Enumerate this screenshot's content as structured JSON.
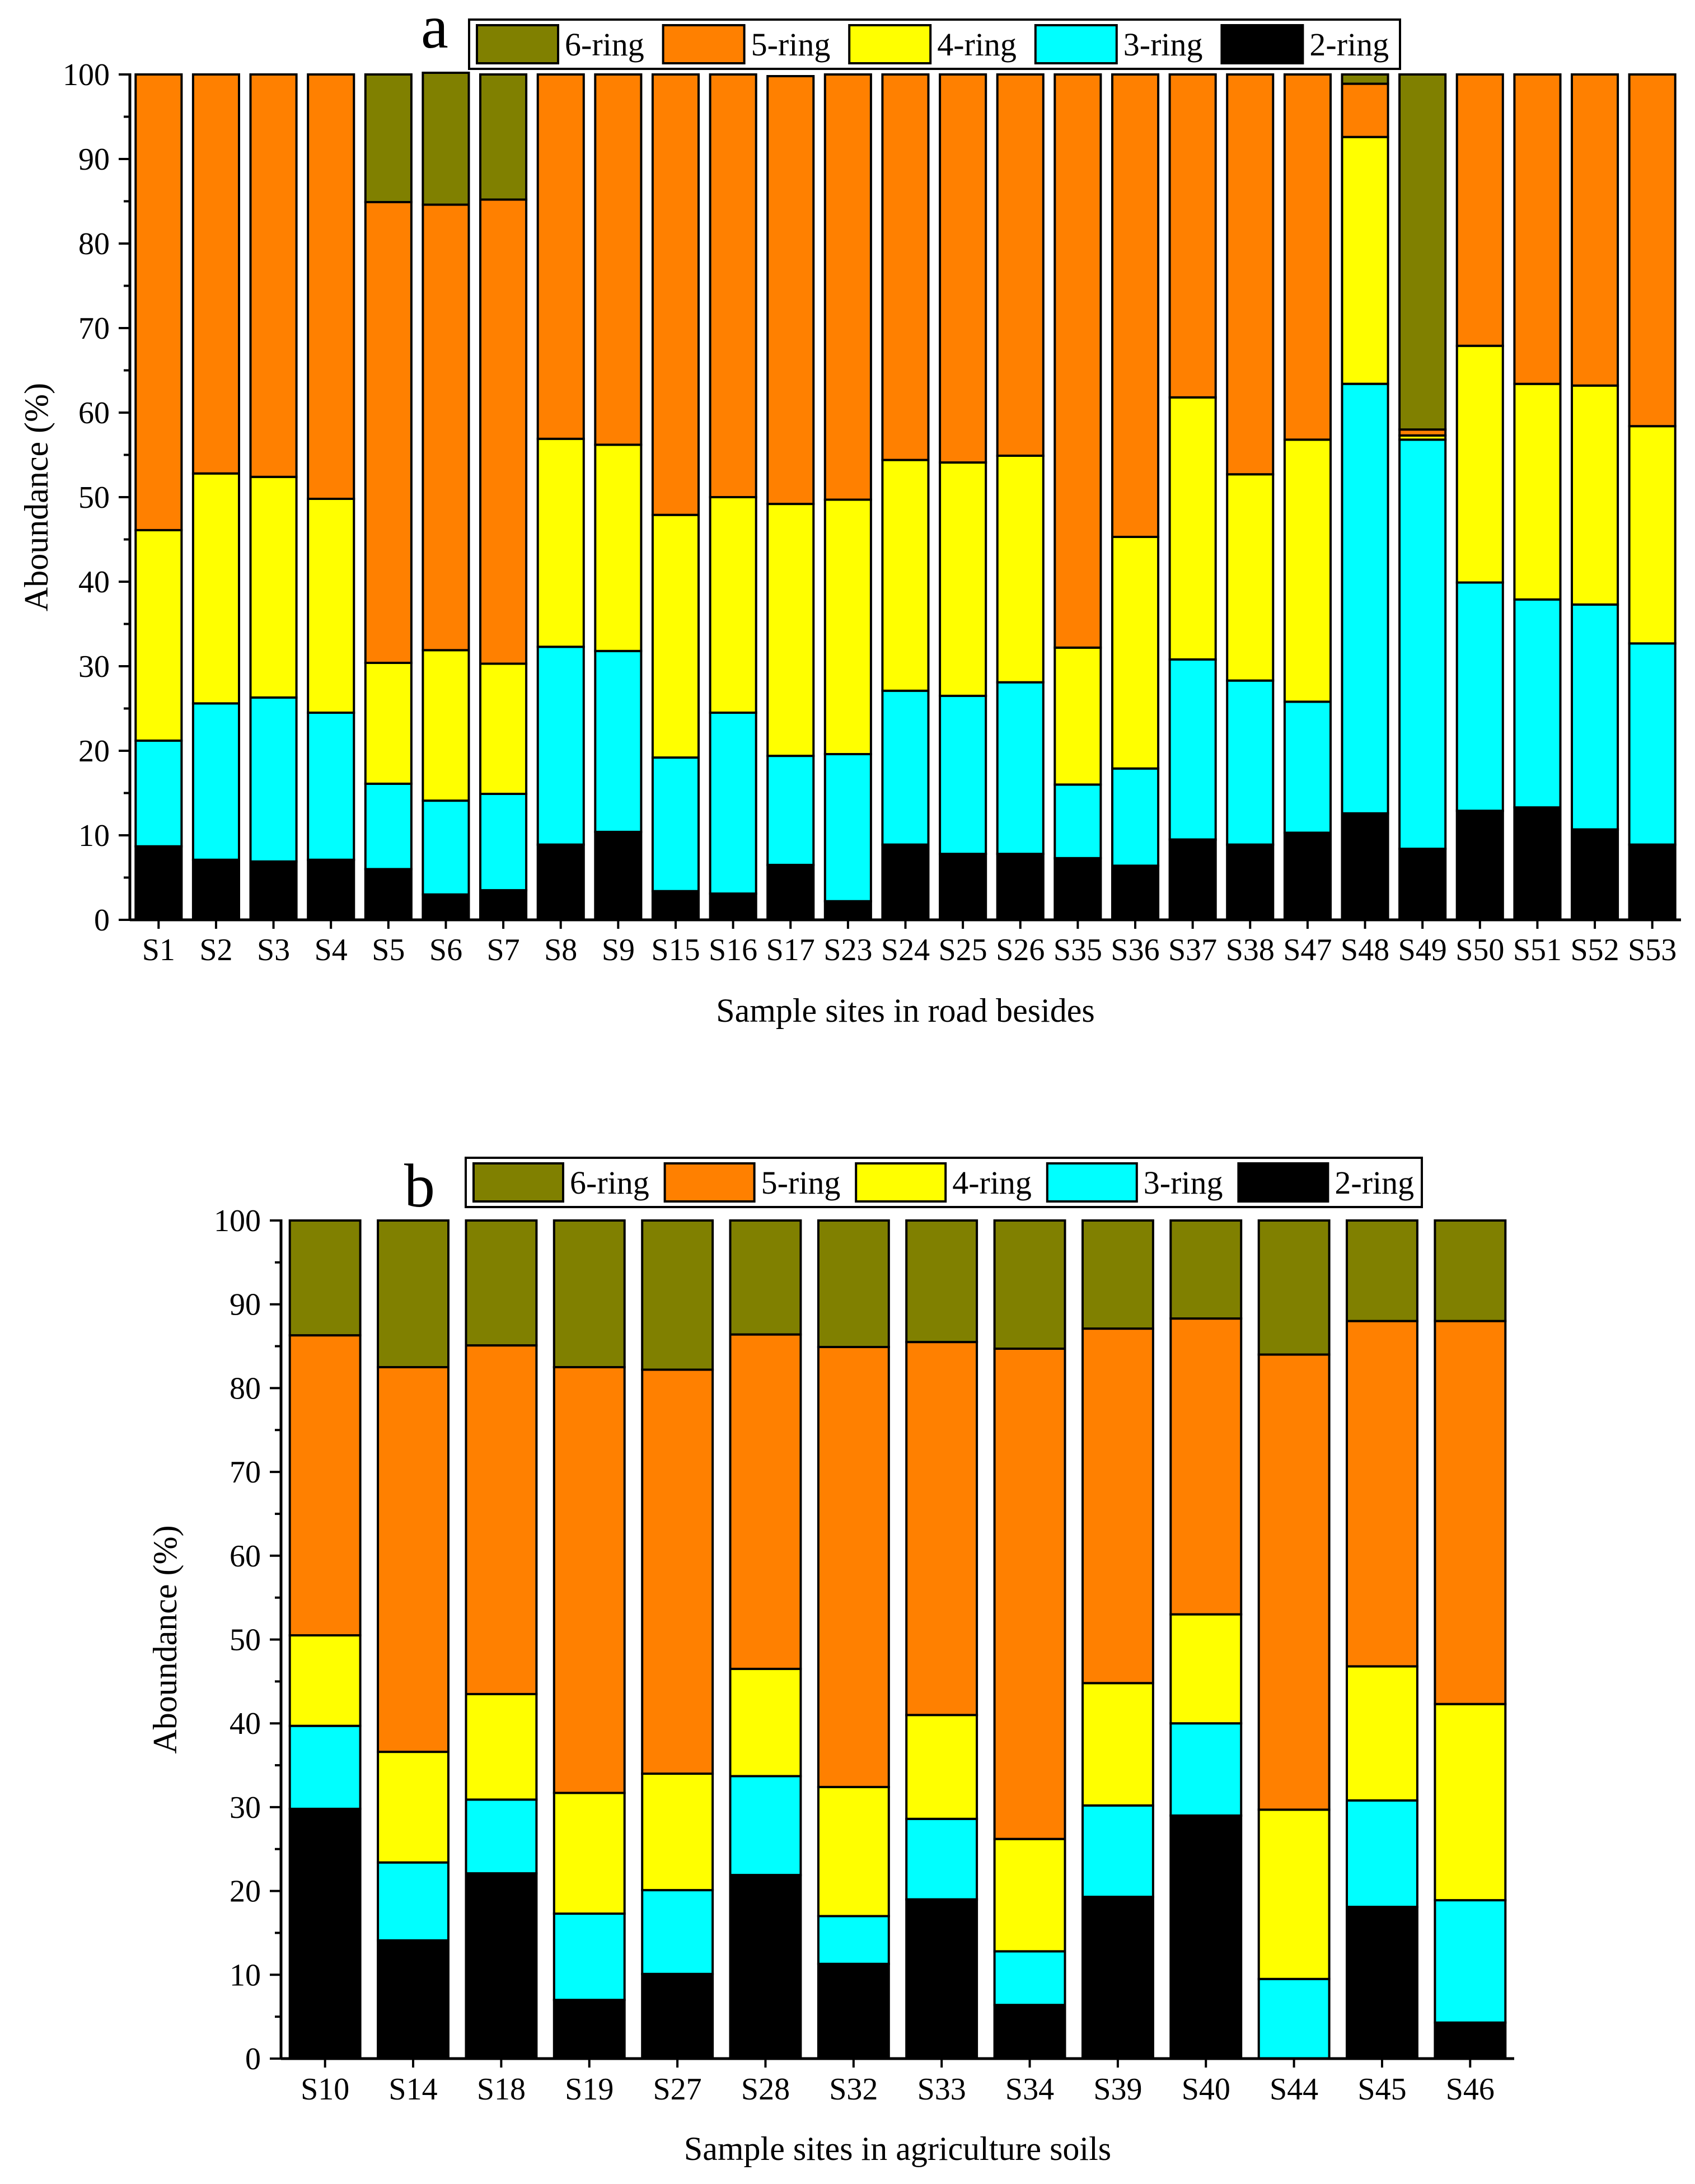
{
  "figure": {
    "colors": {
      "6-ring": "#808000",
      "5-ring": "#ff8000",
      "4-ring": "#ffff00",
      "3-ring": "#00ffff",
      "2-ring": "#000000"
    }
  },
  "chart_data": [
    {
      "type": "bar",
      "stacked": true,
      "panel": "a",
      "xlabel": "Sample sites in road besides",
      "ylabel": "Aboundance (%)",
      "ylim": [
        0,
        100
      ],
      "yticks": [
        0,
        10,
        20,
        30,
        40,
        50,
        60,
        70,
        80,
        90,
        100
      ],
      "legend": [
        "6-ring",
        "5-ring",
        "4-ring",
        "3-ring",
        "2-ring"
      ],
      "legend_position": "top",
      "categories": [
        "S1",
        "S2",
        "S3",
        "S4",
        "S5",
        "S6",
        "S7",
        "S8",
        "S9",
        "S15",
        "S16",
        "S17",
        "S23",
        "S24",
        "S25",
        "S26",
        "S35",
        "S36",
        "S37",
        "S38",
        "S47",
        "S48",
        "S49",
        "S50",
        "S51",
        "S52",
        "S53"
      ],
      "series": [
        {
          "name": "2-ring",
          "values": [
            8.7,
            7.1,
            6.9,
            7.1,
            6.0,
            3.0,
            3.5,
            8.9,
            10.4,
            3.4,
            3.1,
            6.5,
            2.2,
            8.9,
            7.8,
            7.8,
            7.3,
            6.4,
            9.5,
            8.9,
            10.3,
            12.6,
            8.4,
            12.9,
            13.3,
            10.7,
            8.9
          ]
        },
        {
          "name": "3-ring",
          "values": [
            12.5,
            18.5,
            19.4,
            17.4,
            10.1,
            11.1,
            11.4,
            23.4,
            21.4,
            15.8,
            21.4,
            12.9,
            17.4,
            18.2,
            18.7,
            20.3,
            8.7,
            11.5,
            21.3,
            19.4,
            15.5,
            50.8,
            48.4,
            27.0,
            24.6,
            26.6,
            23.8
          ]
        },
        {
          "name": "4-ring",
          "values": [
            24.9,
            27.2,
            26.1,
            25.3,
            14.3,
            17.8,
            15.4,
            24.6,
            24.4,
            28.7,
            25.5,
            29.8,
            30.1,
            27.3,
            27.6,
            26.8,
            16.2,
            27.4,
            31.0,
            24.4,
            31.0,
            29.2,
            0.5,
            28.0,
            25.5,
            25.9,
            25.7
          ]
        },
        {
          "name": "5-ring",
          "values": [
            53.9,
            47.2,
            47.6,
            50.2,
            54.5,
            52.7,
            54.9,
            43.1,
            43.8,
            52.1,
            50.0,
            50.6,
            50.3,
            45.6,
            45.9,
            45.1,
            67.8,
            54.7,
            38.2,
            47.3,
            43.2,
            6.3,
            0.7,
            32.1,
            36.6,
            36.8,
            41.6
          ]
        },
        {
          "name": "6-ring",
          "values": [
            0,
            0,
            0,
            0,
            15.1,
            15.6,
            14.8,
            0,
            0,
            0,
            0,
            0,
            0,
            0,
            0,
            0,
            0,
            0,
            0,
            0,
            0,
            1.1,
            42.0,
            0,
            0,
            0,
            0
          ]
        }
      ]
    },
    {
      "type": "bar",
      "stacked": true,
      "panel": "b",
      "xlabel": "Sample sites in agriculture soils",
      "ylabel": "Aboundance (%)",
      "ylim": [
        0,
        100
      ],
      "yticks": [
        0,
        10,
        20,
        30,
        40,
        50,
        60,
        70,
        80,
        90,
        100
      ],
      "legend": [
        "6-ring",
        "5-ring",
        "4-ring",
        "3-ring",
        "2-ring"
      ],
      "legend_position": "top",
      "categories": [
        "S10",
        "S14",
        "S18",
        "S19",
        "S27",
        "S28",
        "S32",
        "S33",
        "S34",
        "S39",
        "S40",
        "S44",
        "S45",
        "S46"
      ],
      "series": [
        {
          "name": "2-ring",
          "values": [
            29.8,
            14.1,
            22.1,
            7.0,
            10.1,
            21.9,
            11.3,
            19.0,
            6.4,
            19.3,
            29.0,
            0,
            18.1,
            4.3
          ]
        },
        {
          "name": "3-ring",
          "values": [
            9.9,
            9.3,
            8.8,
            10.3,
            10.0,
            11.8,
            5.7,
            9.6,
            6.4,
            10.9,
            11.0,
            9.5,
            12.7,
            14.6
          ]
        },
        {
          "name": "4-ring",
          "values": [
            10.8,
            13.2,
            12.6,
            14.4,
            13.9,
            12.8,
            15.4,
            12.4,
            13.4,
            14.6,
            13.0,
            20.2,
            16.0,
            23.4
          ]
        },
        {
          "name": "5-ring",
          "values": [
            35.8,
            45.9,
            41.6,
            50.8,
            48.2,
            39.9,
            52.5,
            44.5,
            58.5,
            42.3,
            35.3,
            54.3,
            41.2,
            45.7
          ]
        },
        {
          "name": "6-ring",
          "values": [
            13.7,
            17.5,
            14.9,
            17.5,
            17.8,
            13.6,
            15.1,
            14.5,
            15.3,
            12.9,
            11.7,
            16.0,
            12.0,
            12.0
          ]
        }
      ]
    }
  ]
}
